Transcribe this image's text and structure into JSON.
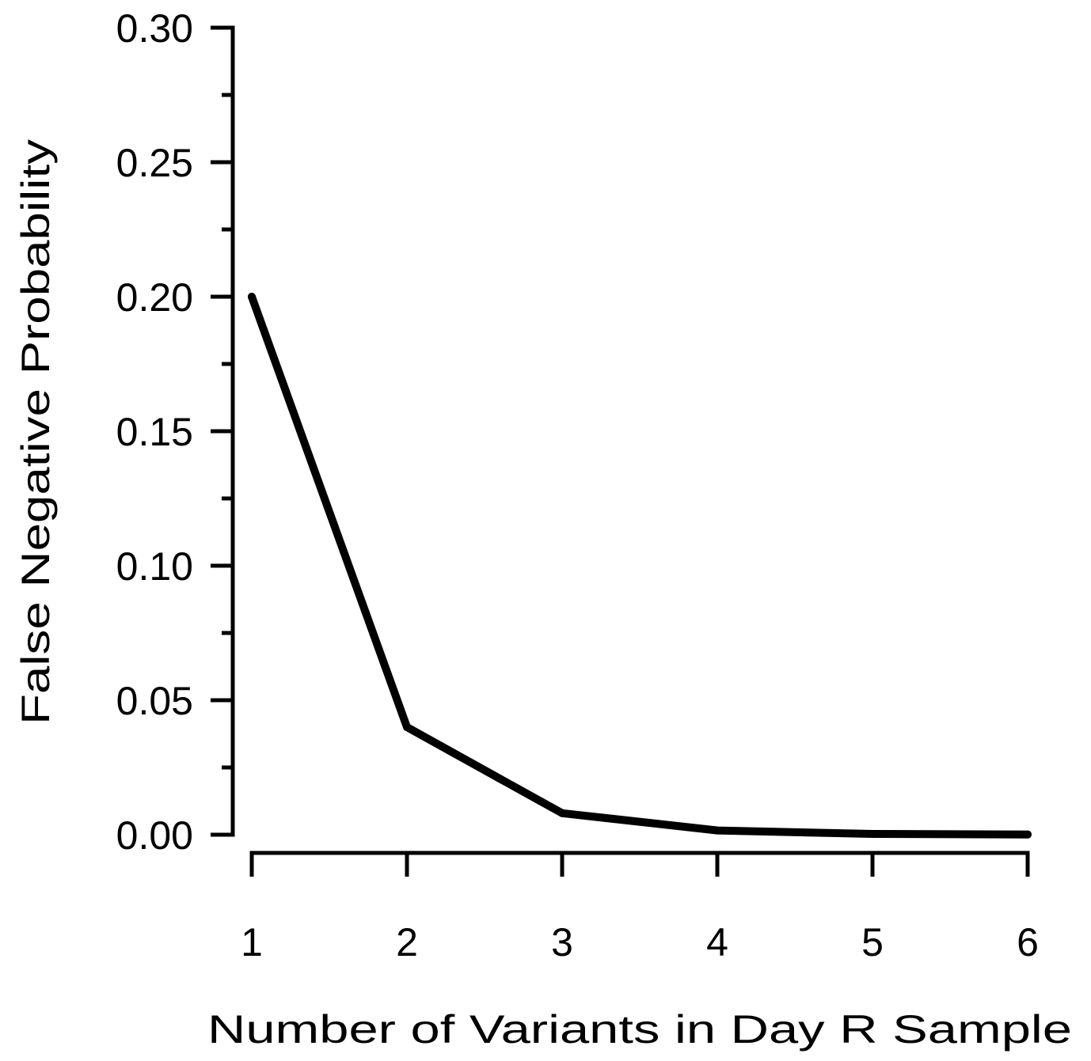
{
  "chart_data": {
    "type": "line",
    "title": "",
    "xlabel": "Number of Variants in Day R Sample",
    "ylabel": "False Negative Probability",
    "x": [
      1,
      2,
      3,
      4,
      5,
      6
    ],
    "series": [
      {
        "values": [
          0.2,
          0.04,
          0.008,
          0.0016,
          0.0003,
          0.0001
        ]
      }
    ],
    "xlim": [
      1,
      6
    ],
    "ylim": [
      0,
      0.3
    ],
    "x_ticks": [
      "1",
      "2",
      "3",
      "4",
      "5",
      "6"
    ],
    "y_ticks": [
      "0.00",
      "0.05",
      "0.10",
      "0.15",
      "0.20",
      "0.25",
      "0.30"
    ],
    "y_tick_values": [
      0,
      0.05,
      0.1,
      0.15,
      0.2,
      0.25,
      0.3
    ],
    "y_minor_tick_values": [
      0.025,
      0.075,
      0.125,
      0.175,
      0.225,
      0.275
    ],
    "grid": false,
    "legend": "none",
    "line_color": "#000000"
  }
}
